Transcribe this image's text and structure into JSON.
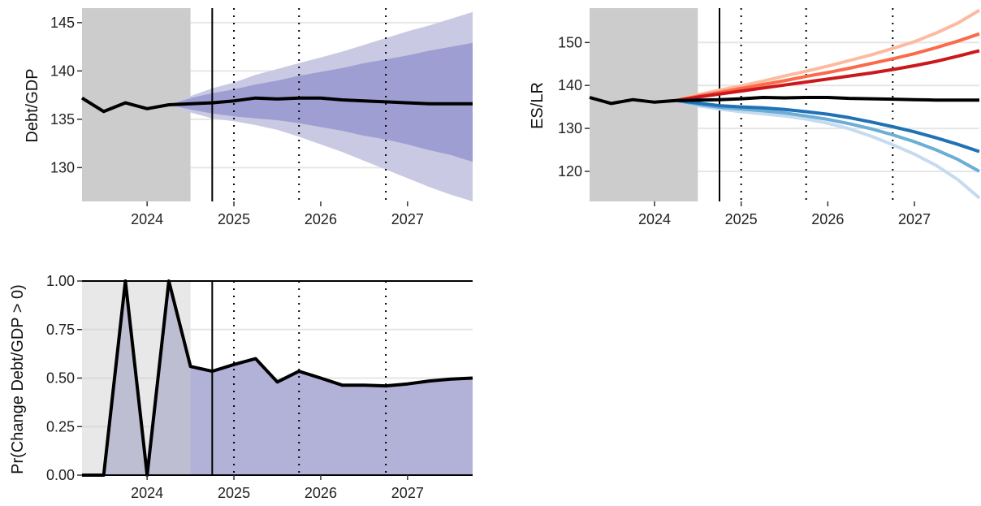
{
  "colors": {
    "history_shade": "#cccccc",
    "band_outer": "#c9c9e4",
    "band_inner": "#9e9ed2",
    "prob_fill": "#b2b2d9",
    "prob_fill_history": "#8787a3",
    "median_line": "#000000",
    "grid": "#e6e6e6"
  },
  "chart_data": [
    {
      "id": "debt",
      "type": "area",
      "ylabel": "Debt/GDP",
      "ylim": [
        126.5,
        146.5
      ],
      "yticks": [
        130,
        135,
        140,
        145
      ],
      "ytick_labels": [
        "130",
        "135",
        "140",
        "145"
      ],
      "xlim": [
        2023.25,
        2027.75
      ],
      "xticks": [
        2024,
        2025,
        2026,
        2027
      ],
      "xtick_labels": [
        "2024",
        "2025",
        "2026",
        "2027"
      ],
      "history_span": [
        2023.25,
        2024.5
      ],
      "forecast_origin": 2024.75,
      "year_markers": [
        2025,
        2025.75,
        2026.75
      ],
      "median": {
        "x": [
          2023.25,
          2023.5,
          2023.75,
          2024.0,
          2024.25,
          2024.5,
          2024.75,
          2025.0,
          2025.25,
          2025.5,
          2025.75,
          2026.0,
          2026.25,
          2026.5,
          2026.75,
          2027.0,
          2027.25,
          2027.5,
          2027.75
        ],
        "y": [
          137.2,
          135.8,
          136.7,
          136.1,
          136.5,
          136.6,
          136.7,
          136.9,
          137.2,
          137.1,
          137.2,
          137.2,
          137.0,
          136.9,
          136.8,
          136.7,
          136.6,
          136.6,
          136.6
        ]
      },
      "bands": [
        {
          "level": "outer",
          "x": [
            2024.25,
            2024.5,
            2024.75,
            2025.0,
            2025.25,
            2025.5,
            2025.75,
            2026.0,
            2026.25,
            2026.5,
            2026.75,
            2027.0,
            2027.25,
            2027.5,
            2027.75
          ],
          "lower": [
            136.5,
            135.7,
            135.1,
            134.8,
            134.4,
            133.9,
            133.2,
            132.4,
            131.6,
            130.7,
            129.8,
            128.9,
            128.0,
            127.2,
            126.5
          ],
          "upper": [
            136.5,
            137.4,
            138.2,
            138.8,
            139.6,
            140.2,
            140.8,
            141.4,
            142.0,
            142.7,
            143.4,
            144.1,
            144.7,
            145.4,
            146.1
          ]
        },
        {
          "level": "inner",
          "x": [
            2024.25,
            2024.5,
            2024.75,
            2025.0,
            2025.25,
            2025.5,
            2025.75,
            2026.0,
            2026.25,
            2026.5,
            2026.75,
            2027.0,
            2027.25,
            2027.5,
            2027.75
          ],
          "lower": [
            136.5,
            136.0,
            135.6,
            135.3,
            135.1,
            134.9,
            134.6,
            134.2,
            133.8,
            133.3,
            132.9,
            132.4,
            131.8,
            131.3,
            130.6
          ],
          "upper": [
            136.5,
            137.2,
            137.7,
            138.1,
            138.6,
            139.0,
            139.5,
            139.9,
            140.3,
            140.8,
            141.2,
            141.6,
            142.1,
            142.5,
            142.9
          ]
        }
      ]
    },
    {
      "id": "es",
      "type": "line",
      "ylabel": "ES/LR",
      "ylim": [
        113,
        158
      ],
      "yticks": [
        120,
        130,
        140,
        150
      ],
      "ytick_labels": [
        "120",
        "130",
        "140",
        "150"
      ],
      "xlim": [
        2023.25,
        2027.75
      ],
      "xticks": [
        2024,
        2025,
        2026,
        2027
      ],
      "xtick_labels": [
        "2024",
        "2025",
        "2026",
        "2027"
      ],
      "history_span": [
        2023.25,
        2024.5
      ],
      "forecast_origin": 2024.75,
      "year_markers": [
        2025,
        2025.75,
        2026.75
      ],
      "series": [
        {
          "color": "#fcbba1",
          "x": [
            2024.25,
            2024.5,
            2024.75,
            2025.0,
            2025.25,
            2025.5,
            2025.75,
            2026.0,
            2026.25,
            2026.5,
            2026.75,
            2027.0,
            2027.25,
            2027.5,
            2027.75
          ],
          "y": [
            136.5,
            137.8,
            138.9,
            139.9,
            141.0,
            142.2,
            143.3,
            144.5,
            145.8,
            147.1,
            148.6,
            150.2,
            152.2,
            154.5,
            157.5
          ]
        },
        {
          "color": "#fb6a4a",
          "x": [
            2024.25,
            2024.5,
            2024.75,
            2025.0,
            2025.25,
            2025.5,
            2025.75,
            2026.0,
            2026.25,
            2026.5,
            2026.75,
            2027.0,
            2027.25,
            2027.5,
            2027.75
          ],
          "y": [
            136.5,
            137.5,
            138.4,
            139.3,
            140.2,
            141.1,
            142.1,
            143.0,
            144.0,
            145.1,
            146.2,
            147.4,
            148.8,
            150.3,
            152.0
          ]
        },
        {
          "color": "#cb181d",
          "x": [
            2024.25,
            2024.5,
            2024.75,
            2025.0,
            2025.25,
            2025.5,
            2025.75,
            2026.0,
            2026.25,
            2026.5,
            2026.75,
            2027.0,
            2027.25,
            2027.5,
            2027.75
          ],
          "y": [
            136.5,
            137.3,
            138.0,
            138.7,
            139.4,
            140.1,
            140.8,
            141.5,
            142.2,
            142.9,
            143.7,
            144.6,
            145.6,
            146.8,
            148.1
          ]
        },
        {
          "color": "#c6dbef",
          "x": [
            2024.25,
            2024.5,
            2024.75,
            2025.0,
            2025.25,
            2025.5,
            2025.75,
            2026.0,
            2026.25,
            2026.5,
            2026.75,
            2027.0,
            2027.25,
            2027.5,
            2027.75
          ],
          "y": [
            136.5,
            135.3,
            134.5,
            133.9,
            133.4,
            132.9,
            132.2,
            131.2,
            129.9,
            128.2,
            126.2,
            124.0,
            121.4,
            118.1,
            113.8
          ]
        },
        {
          "color": "#6baed6",
          "x": [
            2024.25,
            2024.5,
            2024.75,
            2025.0,
            2025.25,
            2025.5,
            2025.75,
            2026.0,
            2026.25,
            2026.5,
            2026.75,
            2027.0,
            2027.25,
            2027.5,
            2027.75
          ],
          "y": [
            136.5,
            135.6,
            134.9,
            134.5,
            134.1,
            133.6,
            132.9,
            132.1,
            131.1,
            129.9,
            128.5,
            126.9,
            125.0,
            122.8,
            120.0
          ]
        },
        {
          "color": "#2171b5",
          "x": [
            2024.25,
            2024.5,
            2024.75,
            2025.0,
            2025.25,
            2025.5,
            2025.75,
            2026.0,
            2026.25,
            2026.5,
            2026.75,
            2027.0,
            2027.25,
            2027.5,
            2027.75
          ],
          "y": [
            136.5,
            135.9,
            135.3,
            135.0,
            134.8,
            134.4,
            133.9,
            133.3,
            132.5,
            131.5,
            130.4,
            129.2,
            127.8,
            126.3,
            124.6
          ]
        },
        {
          "color": "#000000",
          "x": [
            2023.25,
            2023.5,
            2023.75,
            2024.0,
            2024.25,
            2024.5,
            2024.75,
            2025.0,
            2025.25,
            2025.5,
            2025.75,
            2026.0,
            2026.25,
            2026.5,
            2026.75,
            2027.0,
            2027.25,
            2027.5,
            2027.75
          ],
          "y": [
            137.2,
            135.8,
            136.7,
            136.1,
            136.5,
            136.6,
            136.7,
            136.9,
            137.2,
            137.1,
            137.2,
            137.2,
            137.0,
            136.9,
            136.8,
            136.7,
            136.6,
            136.6,
            136.6
          ]
        }
      ]
    },
    {
      "id": "prob",
      "type": "area",
      "ylabel": "Pr(Change Debt/GDP > 0)",
      "ylim": [
        0,
        1
      ],
      "yticks": [
        0,
        0.25,
        0.5,
        0.75,
        1
      ],
      "ytick_labels": [
        "0.00",
        "0.25",
        "0.50",
        "0.75",
        "1.00"
      ],
      "xlim": [
        2023.25,
        2027.75
      ],
      "xticks": [
        2024,
        2025,
        2026,
        2027
      ],
      "xtick_labels": [
        "2024",
        "2025",
        "2026",
        "2027"
      ],
      "history_span": [
        2023.25,
        2024.5
      ],
      "forecast_origin": 2024.75,
      "year_markers": [
        2025,
        2025.75,
        2026.75
      ],
      "x": [
        2023.25,
        2023.5,
        2023.75,
        2024.0,
        2024.25,
        2024.5,
        2024.75,
        2025.0,
        2025.25,
        2025.5,
        2025.75,
        2026.0,
        2026.25,
        2026.5,
        2026.75,
        2027.0,
        2027.25,
        2027.5,
        2027.75
      ],
      "values": [
        0,
        0,
        1,
        0,
        1,
        0.56,
        0.535,
        0.57,
        0.6,
        0.48,
        0.535,
        0.5,
        0.463,
        0.463,
        0.46,
        0.47,
        0.485,
        0.495,
        0.5
      ]
    }
  ]
}
